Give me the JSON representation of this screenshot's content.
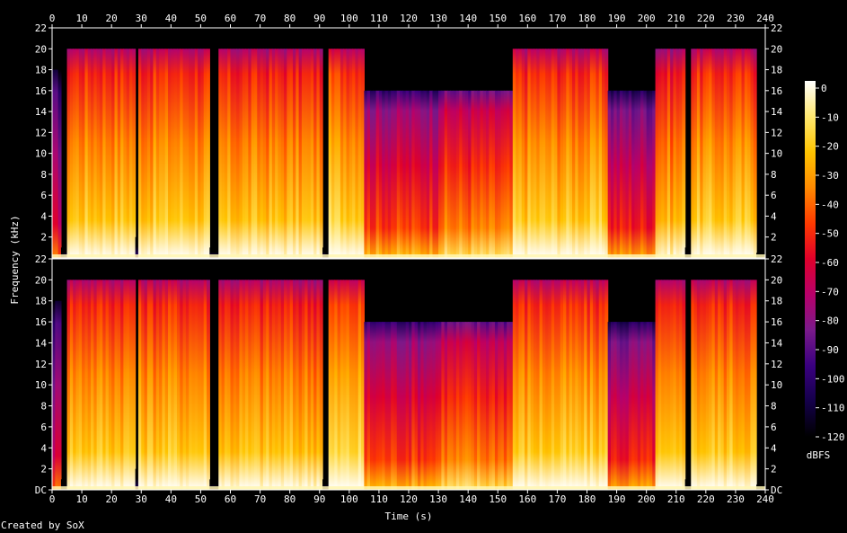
{
  "chart_data": {
    "type": "heatmap",
    "subtype": "spectrogram",
    "xlabel": "Time (s)",
    "ylabel": "Frequency (kHz)",
    "xlim": [
      0,
      240
    ],
    "x_ticks": [
      0,
      10,
      20,
      30,
      40,
      50,
      60,
      70,
      80,
      90,
      100,
      110,
      120,
      130,
      140,
      150,
      160,
      170,
      180,
      190,
      200,
      210,
      220,
      230,
      240
    ],
    "ylim": [
      0,
      22
    ],
    "y_ticks_top": [
      "2",
      "4",
      "6",
      "8",
      "10",
      "12",
      "14",
      "16",
      "18",
      "20",
      "22"
    ],
    "y_ticks_bottom": [
      "DC",
      "2",
      "4",
      "6",
      "8",
      "10",
      "12",
      "14",
      "16",
      "18",
      "20",
      "22"
    ],
    "channels": 2,
    "colorbar": {
      "label": "dBFS",
      "range": [
        -120,
        0
      ],
      "ticks": [
        "0",
        "-10",
        "-20",
        "-30",
        "-40",
        "-50",
        "-60",
        "-70",
        "-80",
        "-90",
        "-100",
        "-110",
        "-120"
      ],
      "colors": [
        "#000000",
        "#14004a",
        "#3a0080",
        "#7a1a8a",
        "#b8006a",
        "#e0002a",
        "#ff3a00",
        "#ff8a00",
        "#ffc400",
        "#ffe870",
        "#ffffff"
      ]
    },
    "segments": [
      {
        "start": 0,
        "end": 3,
        "cutoff_khz": 18,
        "level": 0.45
      },
      {
        "start": 3,
        "end": 4.5,
        "cutoff_khz": 1,
        "level": 0.05
      },
      {
        "start": 4.5,
        "end": 28,
        "cutoff_khz": 20,
        "level": 0.82
      },
      {
        "start": 28,
        "end": 29,
        "cutoff_khz": 2,
        "level": 0.1
      },
      {
        "start": 29,
        "end": 53,
        "cutoff_khz": 20,
        "level": 0.82
      },
      {
        "start": 53,
        "end": 55.5,
        "cutoff_khz": 1,
        "level": 0.05
      },
      {
        "start": 55.5,
        "end": 91,
        "cutoff_khz": 20,
        "level": 0.8
      },
      {
        "start": 91,
        "end": 92.5,
        "cutoff_khz": 1,
        "level": 0.05
      },
      {
        "start": 92.5,
        "end": 105,
        "cutoff_khz": 20,
        "level": 0.85
      },
      {
        "start": 105,
        "end": 130,
        "cutoff_khz": 16,
        "level": 0.6
      },
      {
        "start": 130,
        "end": 155,
        "cutoff_khz": 16,
        "level": 0.68
      },
      {
        "start": 155,
        "end": 187,
        "cutoff_khz": 20,
        "level": 0.82
      },
      {
        "start": 187,
        "end": 203,
        "cutoff_khz": 16,
        "level": 0.55
      },
      {
        "start": 203,
        "end": 213,
        "cutoff_khz": 20,
        "level": 0.78
      },
      {
        "start": 213,
        "end": 214.5,
        "cutoff_khz": 1,
        "level": 0.05
      },
      {
        "start": 214.5,
        "end": 237,
        "cutoff_khz": 20,
        "level": 0.82
      },
      {
        "start": 237,
        "end": 240,
        "cutoff_khz": 0.5,
        "level": 0.05
      }
    ]
  },
  "footer": {
    "credit": "Created by SoX"
  }
}
